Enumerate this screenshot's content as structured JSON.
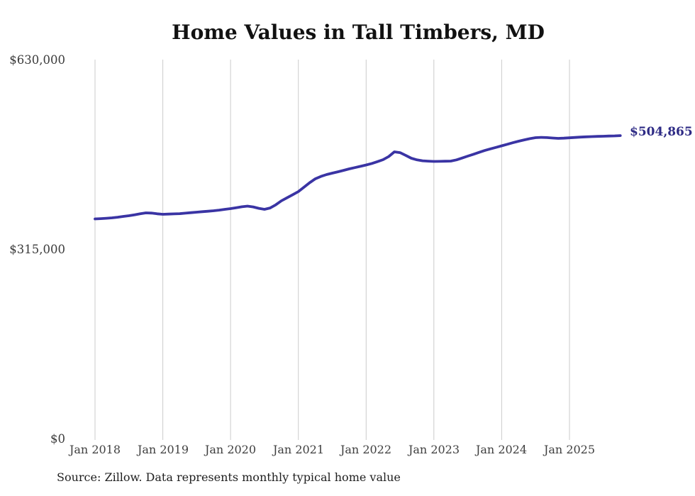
{
  "title": "Home Values in Tall Timbers, MD",
  "source_note": "Source: Zillow. Data represents monthly typical home value",
  "end_label": "$504,865",
  "colors": {
    "line": "#3a34a4",
    "end_label": "#2e2b85",
    "grid": "#cbcbcb",
    "title": "#111111",
    "axis_label": "#3f3f3f",
    "source": "#1f1f1f"
  },
  "chart_data": {
    "type": "line",
    "title": "Home Values in Tall Timbers, MD",
    "xlabel": "",
    "ylabel": "",
    "ylim": [
      0,
      630000
    ],
    "y_tick_labels": [
      "$630,000",
      "$315,000",
      "$0"
    ],
    "y_tick_values": [
      630000,
      315000,
      0
    ],
    "x_tick_labels": [
      "Jan 2018",
      "Jan 2019",
      "Jan 2020",
      "Jan 2021",
      "Jan 2022",
      "Jan 2023",
      "Jan 2024",
      "Jan 2025"
    ],
    "grid": "vertical-only",
    "legend": "none",
    "end_value": 504865,
    "series": [
      {
        "name": "Typical home value",
        "unit": "USD",
        "frequency": "monthly",
        "x_start": "2018-01",
        "x_end": "2025-10",
        "values": [
          366300,
          366800,
          367400,
          368100,
          369200,
          370400,
          371600,
          373200,
          374900,
          376300,
          376000,
          374800,
          374000,
          374300,
          374700,
          375100,
          375900,
          376700,
          377500,
          378300,
          379100,
          379900,
          381000,
          382200,
          383400,
          385000,
          386500,
          387600,
          386200,
          383900,
          382200,
          384500,
          389800,
          396400,
          401500,
          406500,
          411700,
          419000,
          426500,
          433000,
          437000,
          440000,
          442400,
          444600,
          447000,
          449500,
          451600,
          453800,
          456000,
          458500,
          461500,
          464800,
          470000,
          477800,
          476500,
          472000,
          467200,
          464500,
          463000,
          462300,
          461900,
          462000,
          462200,
          462500,
          464500,
          467500,
          470700,
          473800,
          477000,
          480100,
          482800,
          485300,
          487800,
          490400,
          493000,
          495500,
          497800,
          499800,
          501400,
          501900,
          501500,
          500800,
          500200,
          500600,
          501200,
          501800,
          502300,
          502800,
          503200,
          503500,
          503800,
          504100,
          504400,
          504865
        ]
      }
    ]
  }
}
